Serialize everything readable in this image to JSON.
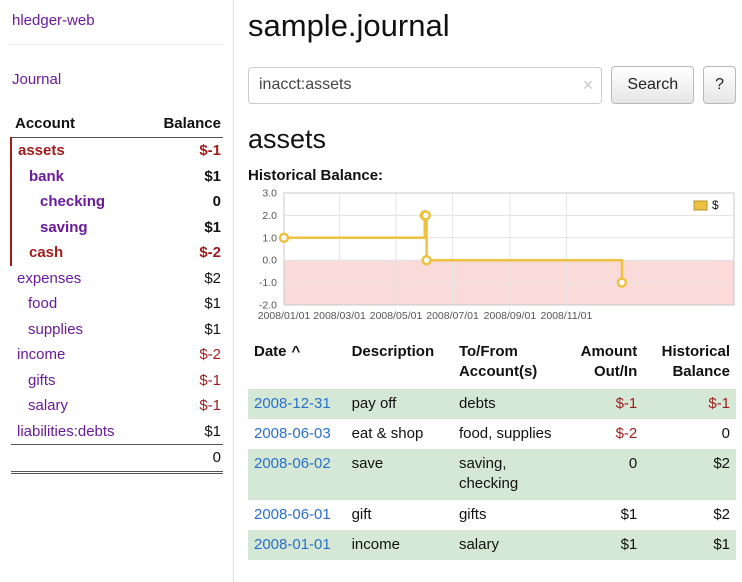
{
  "colors": {
    "link_purple": "#6a1b9a",
    "negative_red": "#9e1c1c",
    "date_blue": "#2a6fc9",
    "row_green": "#d5e8d5",
    "chart_line": "#edc240",
    "chart_negative_region": "#fbdada"
  },
  "sidebar": {
    "app_link": "hledger-web",
    "journal_link": "Journal",
    "accounts": {
      "header_account": "Account",
      "header_balance": "Balance",
      "rows": [
        {
          "name": "assets",
          "balance": "$-1",
          "indent": 1,
          "bold": true,
          "selected_subtree": true,
          "name_negative": true,
          "balance_negative": true
        },
        {
          "name": "bank",
          "balance": "$1",
          "indent": 2,
          "bold": true,
          "selected_subtree": true,
          "name_negative": false,
          "balance_negative": false
        },
        {
          "name": "checking",
          "balance": "0",
          "indent": 3,
          "bold": true,
          "selected_subtree": true,
          "name_negative": false,
          "balance_negative": false
        },
        {
          "name": "saving",
          "balance": "$1",
          "indent": 3,
          "bold": true,
          "selected_subtree": true,
          "name_negative": false,
          "balance_negative": false
        },
        {
          "name": "cash",
          "balance": "$-2",
          "indent": 2,
          "bold": true,
          "selected_subtree": true,
          "name_negative": true,
          "balance_negative": true
        },
        {
          "name": "expenses",
          "balance": "$2",
          "indent": 1,
          "bold": false,
          "selected_subtree": false,
          "name_negative": false,
          "balance_negative": false
        },
        {
          "name": "food",
          "balance": "$1",
          "indent": 2,
          "bold": false,
          "selected_subtree": false,
          "name_negative": false,
          "balance_negative": false
        },
        {
          "name": "supplies",
          "balance": "$1",
          "indent": 2,
          "bold": false,
          "selected_subtree": false,
          "name_negative": false,
          "balance_negative": false
        },
        {
          "name": "income",
          "balance": "$-2",
          "indent": 1,
          "bold": false,
          "selected_subtree": false,
          "name_negative": false,
          "balance_negative": true
        },
        {
          "name": "gifts",
          "balance": "$-1",
          "indent": 2,
          "bold": false,
          "selected_subtree": false,
          "name_negative": false,
          "balance_negative": true
        },
        {
          "name": "salary",
          "balance": "$-1",
          "indent": 2,
          "bold": false,
          "selected_subtree": false,
          "name_negative": false,
          "balance_negative": true
        },
        {
          "name": "liabilities:debts",
          "balance": "$1",
          "indent": 1,
          "bold": false,
          "selected_subtree": false,
          "name_negative": false,
          "balance_negative": false
        }
      ],
      "total": "0"
    }
  },
  "main": {
    "title": "sample.journal",
    "search": {
      "value": "inacct:assets",
      "placeholder": "",
      "clear_icon": "×",
      "button_label": "Search",
      "help_label": "?"
    },
    "account_heading": "assets",
    "chart_label": "Historical Balance:"
  },
  "register": {
    "columns": [
      {
        "key": "date",
        "line1": "Date",
        "line2": "",
        "align": "left",
        "sortable": true,
        "sort_indicator": "^"
      },
      {
        "key": "description",
        "line1": "Description",
        "line2": "",
        "align": "left",
        "sortable": false
      },
      {
        "key": "accounts",
        "line1": "To/From",
        "line2": "Account(s)",
        "align": "left",
        "sortable": false
      },
      {
        "key": "amount",
        "line1": "Amount",
        "line2": "Out/In",
        "align": "right",
        "sortable": false
      },
      {
        "key": "balance",
        "line1": "Historical",
        "line2": "Balance",
        "align": "right",
        "sortable": false
      }
    ],
    "rows": [
      {
        "date": "2008-12-31",
        "description": "pay off",
        "accounts": "debts",
        "amount": "$-1",
        "amount_negative": true,
        "balance": "$-1",
        "balance_negative": true,
        "shaded": true
      },
      {
        "date": "2008-06-03",
        "description": "eat & shop",
        "accounts": "food, supplies",
        "amount": "$-2",
        "amount_negative": true,
        "balance": "0",
        "balance_negative": false,
        "shaded": false
      },
      {
        "date": "2008-06-02",
        "description": "save",
        "accounts": "saving, checking",
        "amount": "0",
        "amount_negative": false,
        "balance": "$2",
        "balance_negative": false,
        "shaded": true
      },
      {
        "date": "2008-06-01",
        "description": "gift",
        "accounts": "gifts",
        "amount": "$1",
        "amount_negative": false,
        "balance": "$2",
        "balance_negative": false,
        "shaded": false
      },
      {
        "date": "2008-01-01",
        "description": "income",
        "accounts": "salary",
        "amount": "$1",
        "amount_negative": false,
        "balance": "$1",
        "balance_negative": false,
        "shaded": true
      }
    ]
  },
  "chart_data": {
    "type": "line",
    "title": "Historical Balance",
    "step": true,
    "x_domain": [
      "2008-01-01",
      "2009-05-01"
    ],
    "ylim": [
      -2,
      3
    ],
    "yticks": [
      "3.0",
      "2.0",
      "1.0",
      "0.0",
      "-1.0",
      "-2.0"
    ],
    "xticks": [
      {
        "date": "2008-01-01",
        "label": "2008/01/01"
      },
      {
        "date": "2008-03-01",
        "label": "2008/03/01"
      },
      {
        "date": "2008-05-01",
        "label": "2008/05/01"
      },
      {
        "date": "2008-07-01",
        "label": "2008/07/01"
      },
      {
        "date": "2008-09-01",
        "label": "2008/09/01"
      },
      {
        "date": "2008-11-01",
        "label": "2008/11/01"
      }
    ],
    "series": [
      {
        "name": "$",
        "color": "#edc240",
        "points": [
          [
            "2008-01-01",
            1
          ],
          [
            "2008-06-01",
            2
          ],
          [
            "2008-06-02",
            2
          ],
          [
            "2008-06-03",
            0
          ],
          [
            "2008-12-31",
            -1
          ]
        ]
      }
    ],
    "legend": {
      "label": "$",
      "position": "top-right"
    },
    "grid": true,
    "negative_region_color": "#fbdada"
  }
}
